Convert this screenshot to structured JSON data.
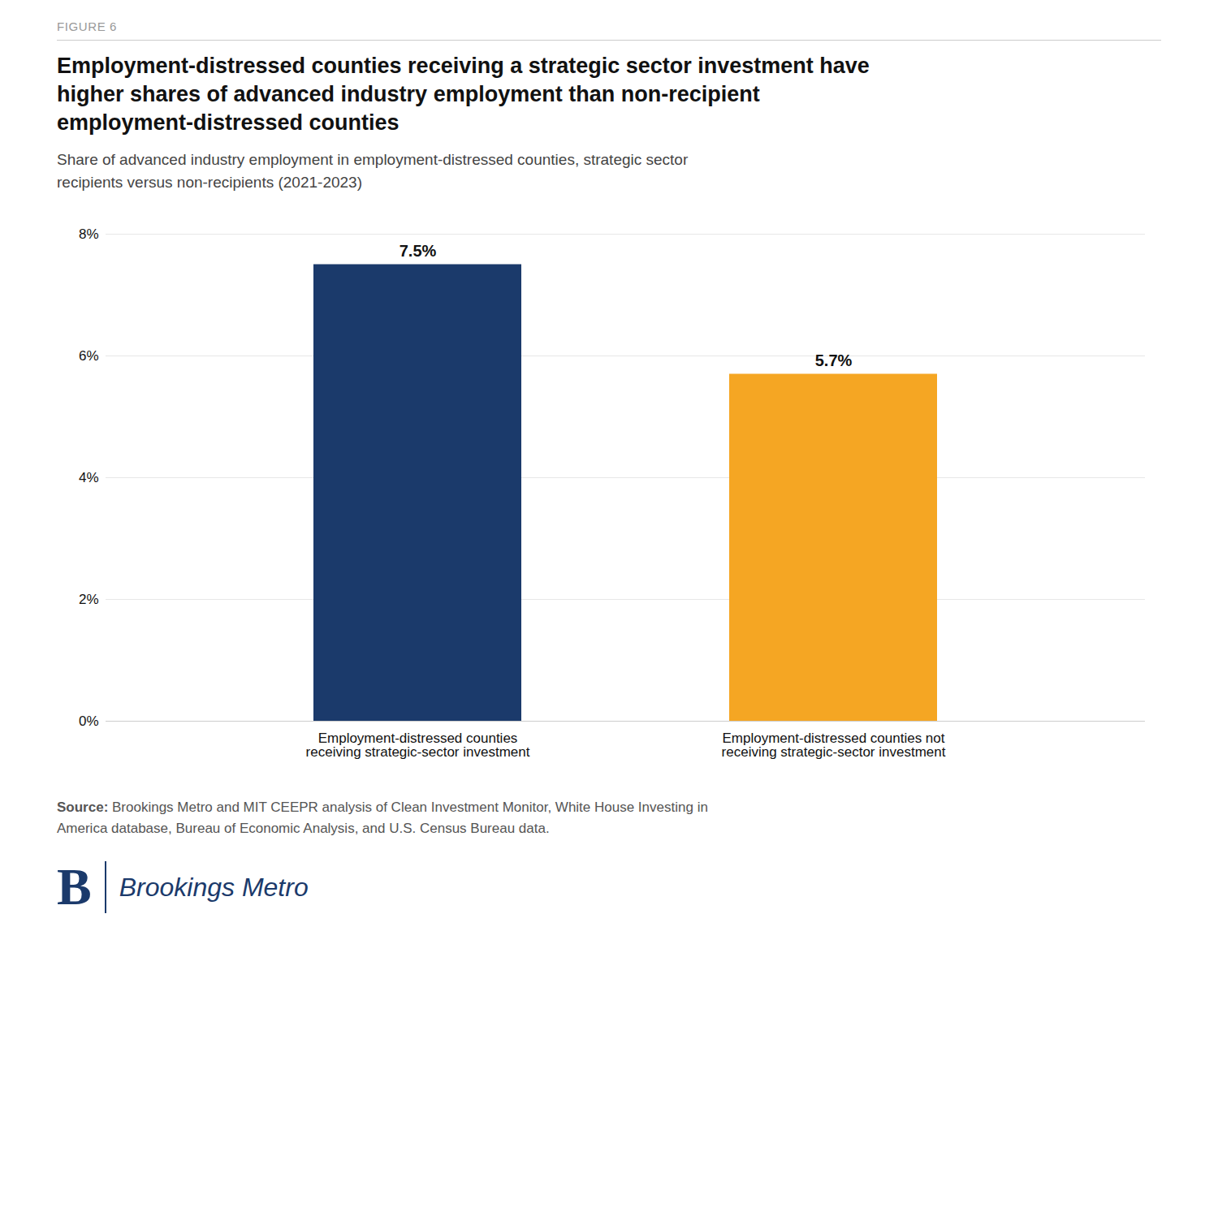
{
  "chart_data": {
    "type": "bar",
    "figure_label": "FIGURE 6",
    "title": "Employment-distressed counties receiving a strategic sector investment have\nhigher shares of advanced industry employment than non-recipient\nemployment-distressed counties",
    "subtitle": "Share of advanced industry employment in employment-distressed counties, strategic sector\nrecipients versus non-recipients (2021-2023)",
    "categories": [
      "Employment-distressed counties\nreceiving strategic-sector investment",
      "Employment-distressed counties not\nreceiving strategic-sector investment"
    ],
    "values": [
      7.5,
      5.7
    ],
    "value_labels": [
      "7.5%",
      "5.7%"
    ],
    "colors": [
      "#1b3a6b",
      "#f5a623"
    ],
    "ylim": [
      0,
      8
    ],
    "yticks": [
      {
        "value": 0,
        "label": "0%"
      },
      {
        "value": 2,
        "label": "2%"
      },
      {
        "value": 4,
        "label": "4%"
      },
      {
        "value": 6,
        "label": "6%"
      },
      {
        "value": 8,
        "label": "8%"
      }
    ],
    "grid": true,
    "data_labels": true,
    "source_label": "Source:",
    "source": " Brookings Metro and MIT CEEPR analysis of Clean Investment Monitor, White House Investing in\nAmerica database, Bureau of Economic Analysis, and U.S. Census Bureau data.",
    "logo": [
      "B",
      "Brookings Metro"
    ]
  }
}
